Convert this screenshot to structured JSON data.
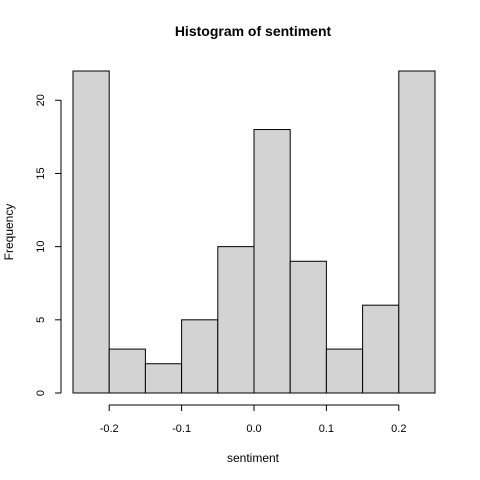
{
  "chart_data": {
    "type": "bar",
    "title": "Histogram of sentiment",
    "xlabel": "sentiment",
    "ylabel": "Frequency",
    "bin_edges": [
      -0.25,
      -0.2,
      -0.15,
      -0.1,
      -0.05,
      0.0,
      0.05,
      0.1,
      0.15,
      0.2,
      0.25
    ],
    "values": [
      22,
      3,
      2,
      5,
      10,
      18,
      9,
      3,
      6,
      22
    ],
    "xlim": [
      -0.25,
      0.25
    ],
    "ylim": [
      0,
      22
    ],
    "x_ticks": [
      -0.2,
      -0.1,
      0.0,
      0.1,
      0.2
    ],
    "x_tick_labels": [
      "-0.2",
      "-0.1",
      "0.0",
      "0.1",
      "0.2"
    ],
    "y_ticks": [
      0,
      5,
      10,
      15,
      20
    ],
    "y_tick_labels": [
      "0",
      "5",
      "10",
      "15",
      "20"
    ],
    "bar_color": "#d3d3d3",
    "grid": false,
    "legend": "none"
  }
}
